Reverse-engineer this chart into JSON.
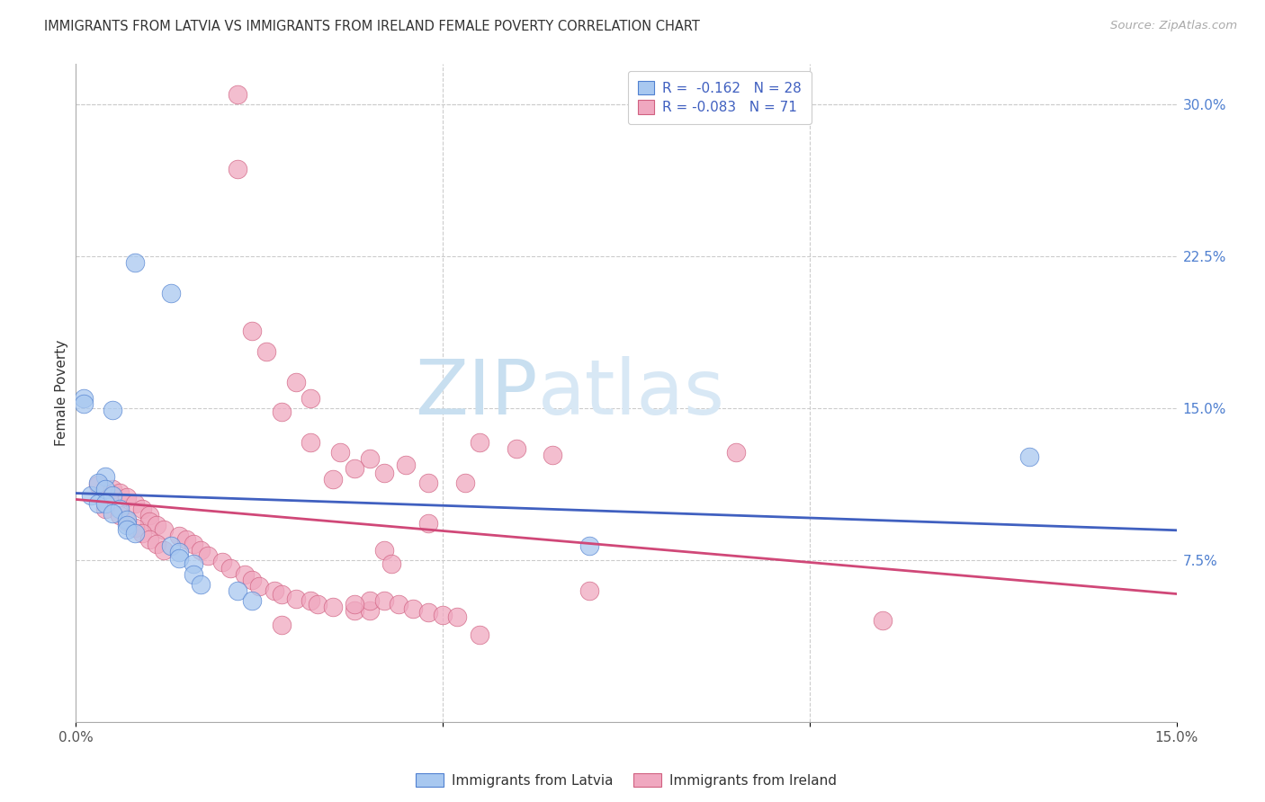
{
  "title": "IMMIGRANTS FROM LATVIA VS IMMIGRANTS FROM IRELAND FEMALE POVERTY CORRELATION CHART",
  "source": "Source: ZipAtlas.com",
  "ylabel": "Female Poverty",
  "xlim": [
    0.0,
    0.15
  ],
  "ylim": [
    -0.005,
    0.32
  ],
  "yticks_right": [
    0.075,
    0.15,
    0.225,
    0.3
  ],
  "ytick_labels_right": [
    "7.5%",
    "15.0%",
    "22.5%",
    "30.0%"
  ],
  "legend_line1": "R =  -0.162   N = 28",
  "legend_line2": "R = -0.083   N = 71",
  "color_latvia": "#a8c8f0",
  "color_ireland": "#f0a8c0",
  "edge_color_latvia": "#5080d0",
  "edge_color_ireland": "#d06080",
  "line_color_latvia": "#4060c0",
  "line_color_ireland": "#d04878",
  "watermark_zip": "ZIP",
  "watermark_atlas": "atlas",
  "scatter_latvia": [
    [
      0.001,
      0.155
    ],
    [
      0.008,
      0.222
    ],
    [
      0.013,
      0.207
    ],
    [
      0.005,
      0.149
    ],
    [
      0.001,
      0.152
    ],
    [
      0.002,
      0.107
    ],
    [
      0.003,
      0.103
    ],
    [
      0.004,
      0.116
    ],
    [
      0.003,
      0.113
    ],
    [
      0.004,
      0.11
    ],
    [
      0.005,
      0.107
    ],
    [
      0.004,
      0.103
    ],
    [
      0.006,
      0.1
    ],
    [
      0.005,
      0.098
    ],
    [
      0.007,
      0.095
    ],
    [
      0.007,
      0.092
    ],
    [
      0.007,
      0.09
    ],
    [
      0.008,
      0.088
    ],
    [
      0.013,
      0.082
    ],
    [
      0.014,
      0.079
    ],
    [
      0.014,
      0.076
    ],
    [
      0.016,
      0.073
    ],
    [
      0.016,
      0.068
    ],
    [
      0.017,
      0.063
    ],
    [
      0.022,
      0.06
    ],
    [
      0.024,
      0.055
    ],
    [
      0.07,
      0.082
    ],
    [
      0.13,
      0.126
    ]
  ],
  "scatter_ireland": [
    [
      0.022,
      0.305
    ],
    [
      0.022,
      0.268
    ],
    [
      0.024,
      0.188
    ],
    [
      0.026,
      0.178
    ],
    [
      0.03,
      0.163
    ],
    [
      0.032,
      0.155
    ],
    [
      0.028,
      0.148
    ],
    [
      0.032,
      0.133
    ],
    [
      0.036,
      0.128
    ],
    [
      0.04,
      0.125
    ],
    [
      0.045,
      0.122
    ],
    [
      0.038,
      0.12
    ],
    [
      0.042,
      0.118
    ],
    [
      0.035,
      0.115
    ],
    [
      0.048,
      0.113
    ],
    [
      0.053,
      0.113
    ],
    [
      0.055,
      0.133
    ],
    [
      0.06,
      0.13
    ],
    [
      0.065,
      0.127
    ],
    [
      0.003,
      0.112
    ],
    [
      0.005,
      0.11
    ],
    [
      0.006,
      0.108
    ],
    [
      0.007,
      0.106
    ],
    [
      0.008,
      0.103
    ],
    [
      0.009,
      0.1
    ],
    [
      0.01,
      0.097
    ],
    [
      0.01,
      0.094
    ],
    [
      0.011,
      0.092
    ],
    [
      0.012,
      0.09
    ],
    [
      0.014,
      0.087
    ],
    [
      0.015,
      0.085
    ],
    [
      0.016,
      0.083
    ],
    [
      0.017,
      0.08
    ],
    [
      0.018,
      0.077
    ],
    [
      0.02,
      0.074
    ],
    [
      0.021,
      0.071
    ],
    [
      0.023,
      0.068
    ],
    [
      0.024,
      0.065
    ],
    [
      0.025,
      0.062
    ],
    [
      0.027,
      0.06
    ],
    [
      0.028,
      0.058
    ],
    [
      0.03,
      0.056
    ],
    [
      0.032,
      0.055
    ],
    [
      0.033,
      0.053
    ],
    [
      0.035,
      0.052
    ],
    [
      0.038,
      0.05
    ],
    [
      0.04,
      0.05
    ],
    [
      0.028,
      0.043
    ],
    [
      0.04,
      0.055
    ],
    [
      0.042,
      0.055
    ],
    [
      0.044,
      0.053
    ],
    [
      0.046,
      0.051
    ],
    [
      0.048,
      0.049
    ],
    [
      0.05,
      0.048
    ],
    [
      0.052,
      0.047
    ],
    [
      0.004,
      0.1
    ],
    [
      0.006,
      0.097
    ],
    [
      0.007,
      0.094
    ],
    [
      0.008,
      0.091
    ],
    [
      0.009,
      0.088
    ],
    [
      0.01,
      0.085
    ],
    [
      0.011,
      0.083
    ],
    [
      0.012,
      0.08
    ],
    [
      0.055,
      0.038
    ],
    [
      0.09,
      0.128
    ],
    [
      0.11,
      0.045
    ],
    [
      0.042,
      0.08
    ],
    [
      0.048,
      0.093
    ],
    [
      0.043,
      0.073
    ],
    [
      0.038,
      0.053
    ],
    [
      0.07,
      0.06
    ]
  ],
  "figsize": [
    14.06,
    8.92
  ],
  "dpi": 100
}
